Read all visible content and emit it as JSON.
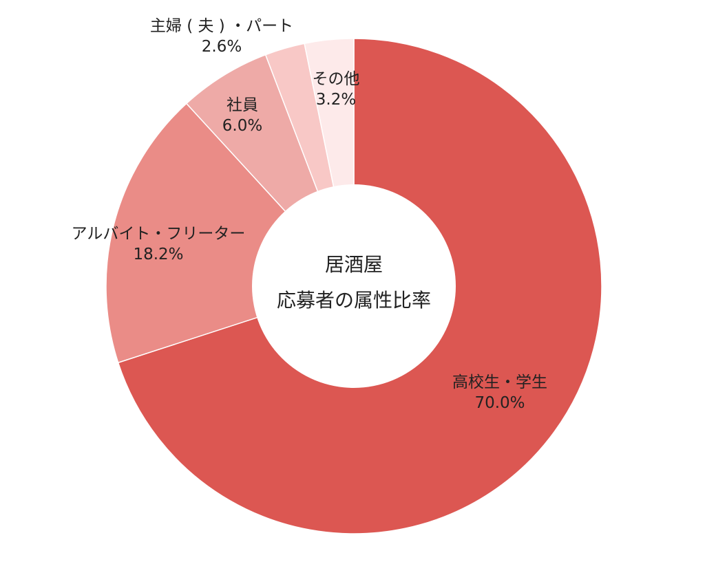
{
  "chart_data": {
    "type": "pie",
    "donut": true,
    "center_title": [
      "居酒屋",
      "応募者の属性比率"
    ],
    "start": "top",
    "direction": "clockwise",
    "slices": [
      {
        "label": "高校生・学生",
        "value": 70.0,
        "value_label": "70.0%",
        "color": "#dc5752"
      },
      {
        "label": "アルバイト・フリーター",
        "value": 18.2,
        "value_label": "18.2%",
        "color": "#ea8c87"
      },
      {
        "label": "社員",
        "value": 6.0,
        "value_label": "6.0%",
        "color": "#eeaaa7"
      },
      {
        "label": "主婦 ( 夫 ) ・パート",
        "value": 2.6,
        "value_label": "2.6%",
        "color": "#f8c8c6"
      },
      {
        "label": "その他",
        "value": 3.2,
        "value_label": "3.2%",
        "color": "#fdeaea"
      }
    ]
  }
}
